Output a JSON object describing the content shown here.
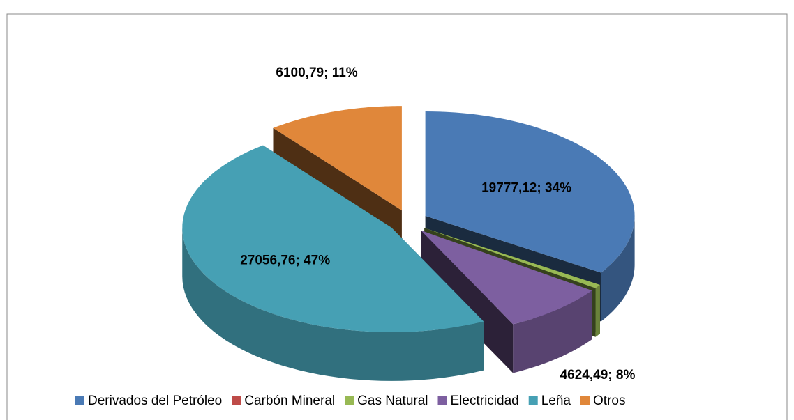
{
  "chart_data": {
    "type": "pie",
    "categories": [
      "Derivados del Petróleo",
      "Carbón Mineral",
      "Gas Natural",
      "Electricidad",
      "Leña",
      "Otros"
    ],
    "values": [
      19777.12,
      0,
      350,
      4624.49,
      27056.76,
      6100.79
    ],
    "value_labels": [
      "19777,12; 34%",
      null,
      null,
      "4624,49; 8%",
      "27056,76; 47%",
      "6100,79; 11%"
    ],
    "colors": [
      "#4a7ab5",
      "#be4b48",
      "#98b954",
      "#7d5fa0",
      "#46a0b4",
      "#e0873a"
    ],
    "legend": "bottom"
  }
}
